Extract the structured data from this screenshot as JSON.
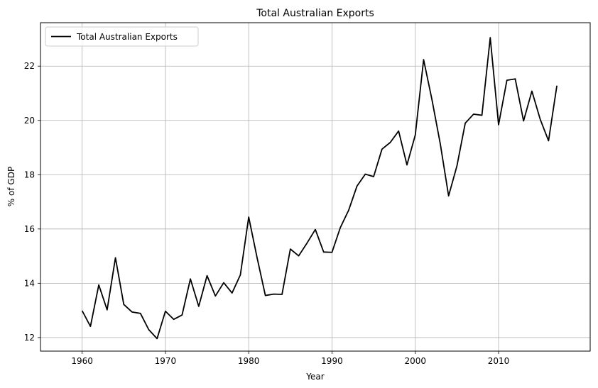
{
  "chart_data": {
    "type": "line",
    "title": "Total Australian Exports",
    "xlabel": "Year",
    "ylabel": "% of GDP",
    "xlim": [
      1955,
      2021
    ],
    "ylim": [
      11.5,
      23.6
    ],
    "xticks": [
      1960,
      1970,
      1980,
      1990,
      2000,
      2010
    ],
    "yticks": [
      12,
      14,
      16,
      18,
      20,
      22
    ],
    "grid": true,
    "legend_position": "top-left",
    "series": [
      {
        "name": "Total Australian Exports",
        "color": "#000000",
        "x": [
          1960,
          1961,
          1962,
          1963,
          1964,
          1965,
          1966,
          1967,
          1968,
          1969,
          1970,
          1971,
          1972,
          1973,
          1974,
          1975,
          1976,
          1977,
          1978,
          1979,
          1980,
          1981,
          1982,
          1983,
          1984,
          1985,
          1986,
          1987,
          1988,
          1989,
          1990,
          1991,
          1992,
          1993,
          1994,
          1995,
          1996,
          1997,
          1998,
          1999,
          2000,
          2001,
          2002,
          2003,
          2004,
          2005,
          2006,
          2007,
          2008,
          2009,
          2010,
          2011,
          2012,
          2013,
          2014,
          2015,
          2016,
          2017
        ],
        "y": [
          12.99,
          12.41,
          13.94,
          13.02,
          14.94,
          13.22,
          12.94,
          12.89,
          12.29,
          11.96,
          12.97,
          12.67,
          12.83,
          14.16,
          13.15,
          14.28,
          13.53,
          14.02,
          13.64,
          14.31,
          16.44,
          14.95,
          13.55,
          13.6,
          13.59,
          15.26,
          15.01,
          15.48,
          15.98,
          15.15,
          15.14,
          16.05,
          16.69,
          17.58,
          18.02,
          17.93,
          18.94,
          19.19,
          19.61,
          18.36,
          19.46,
          22.24,
          20.77,
          19.14,
          17.22,
          18.32,
          19.9,
          20.23,
          20.19,
          23.05,
          19.84,
          21.48,
          21.53,
          19.98,
          21.08,
          20.04,
          19.25,
          21.28
        ]
      }
    ]
  }
}
